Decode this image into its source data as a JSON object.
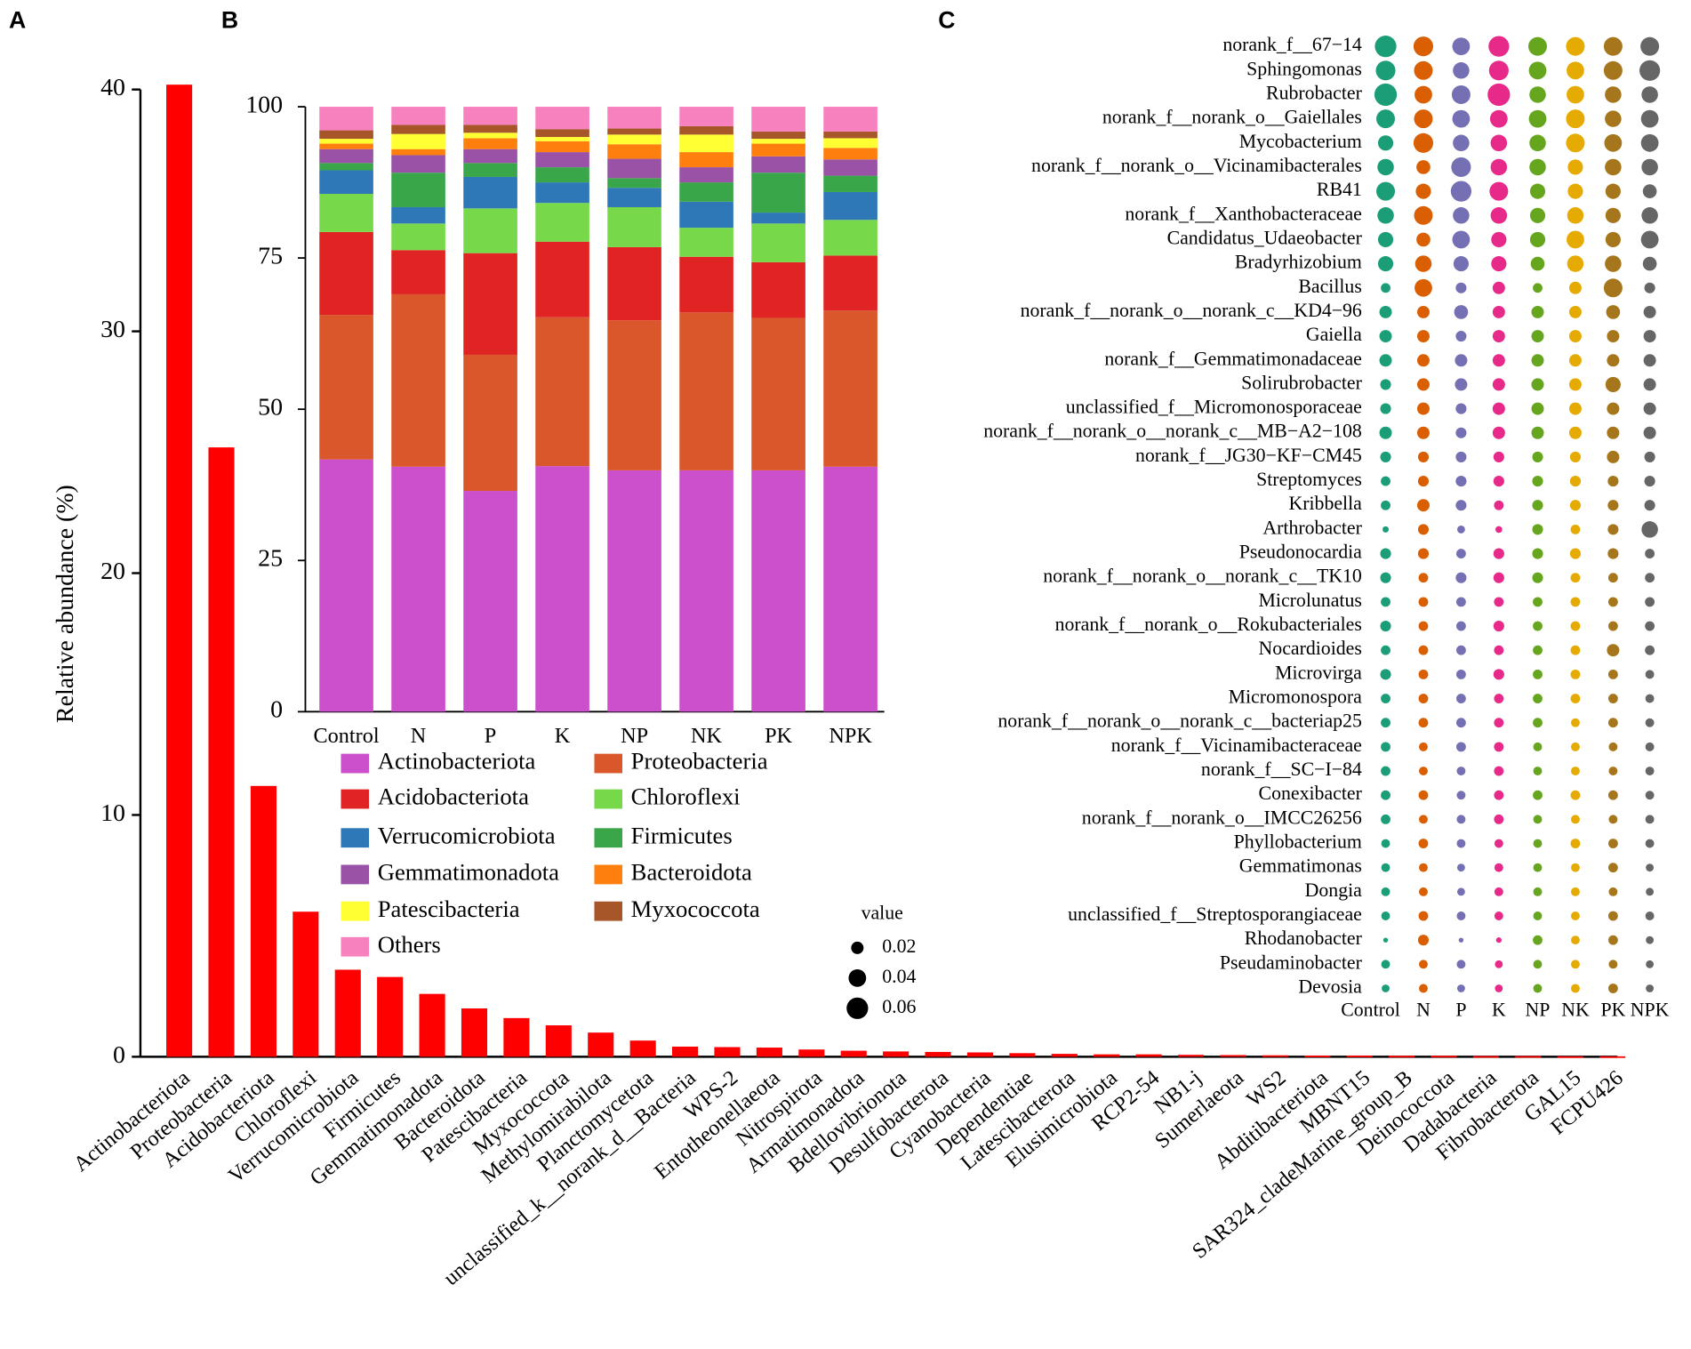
{
  "chart_data": [
    {
      "type": "bar",
      "panel": "A",
      "ylabel": "Relative abundance (%)",
      "color": "#ff0000",
      "categories": [
        "Actinobacteriota",
        "Proteobacteria",
        "Acidobacteriota",
        "Chloroflexi",
        "Verrucomicrobiota",
        "Firmicutes",
        "Gemmatimonadota",
        "Bacteroidota",
        "Patescibacteria",
        "Myxococcota",
        "Methylomirabilota",
        "Planctomycetota",
        "unclassified_k__norank_d__Bacteria",
        "WPS-2",
        "Entotheonellaeota",
        "Nitrospirota",
        "Armatimonadota",
        "Bdellovibrionota",
        "Desulfobacterota",
        "Cyanobacteria",
        "Dependentiae",
        "Latescibacterota",
        "Elusimicrobiota",
        "RCP2-54",
        "NB1-j",
        "Sumerlaeota",
        "WS2",
        "Abditibacteriota",
        "MBNT15",
        "SAR324_cladeMarine_group_B",
        "Deinococcota",
        "Dadabacteria",
        "Fibrobacterota",
        "GAL15",
        "FCPU426"
      ],
      "values": [
        40.2,
        25.2,
        11.2,
        6.0,
        3.6,
        3.3,
        2.6,
        2.0,
        1.6,
        1.3,
        1.0,
        0.67,
        0.42,
        0.4,
        0.38,
        0.3,
        0.25,
        0.22,
        0.2,
        0.18,
        0.15,
        0.12,
        0.1,
        0.1,
        0.08,
        0.07,
        0.06,
        0.05,
        0.05,
        0.04,
        0.04,
        0.03,
        0.03,
        0.02,
        0.02
      ],
      "ylim": [
        0,
        40
      ],
      "yticks": [
        0,
        10,
        20,
        30,
        40
      ]
    },
    {
      "type": "stacked_bar",
      "panel": "B",
      "categories": [
        "Control",
        "N",
        "P",
        "K",
        "NP",
        "NK",
        "PK",
        "NPK"
      ],
      "series": [
        {
          "name": "Actinobacteriota",
          "color": "#cc4fcc",
          "values": [
            41.7,
            40.5,
            36.5,
            40.6,
            39.9,
            39.9,
            39.9,
            40.5
          ]
        },
        {
          "name": "Proteobacteria",
          "color": "#d9572a",
          "values": [
            23.9,
            28.5,
            22.5,
            24.6,
            24.8,
            26.1,
            25.2,
            25.8
          ]
        },
        {
          "name": "Acidobacteriota",
          "color": "#e02424",
          "values": [
            13.7,
            7.3,
            16.8,
            12.5,
            12.1,
            9.2,
            9.2,
            9.1
          ]
        },
        {
          "name": "Chloroflexi",
          "color": "#77d94a",
          "values": [
            6.3,
            4.4,
            7.4,
            6.4,
            6.6,
            4.8,
            6.4,
            5.9
          ]
        },
        {
          "name": "Verrucomicrobiota",
          "color": "#2f78b8",
          "values": [
            3.9,
            2.7,
            5.2,
            3.4,
            3.2,
            4.3,
            1.8,
            4.6
          ]
        },
        {
          "name": "Firmicutes",
          "color": "#3aa64a",
          "values": [
            1.2,
            5.7,
            2.3,
            2.5,
            1.6,
            3.2,
            6.6,
            2.7
          ]
        },
        {
          "name": "Gemmatimonadota",
          "color": "#9a52a6",
          "values": [
            2.3,
            2.9,
            2.3,
            2.5,
            3.2,
            2.5,
            2.7,
            2.7
          ]
        },
        {
          "name": "Bacteroidota",
          "color": "#ff7f0e",
          "values": [
            0.9,
            1.0,
            1.8,
            1.8,
            2.4,
            2.5,
            2.1,
            1.9
          ]
        },
        {
          "name": "Patescibacteria",
          "color": "#ffff33",
          "values": [
            0.8,
            2.5,
            0.9,
            0.7,
            1.6,
            2.9,
            0.8,
            1.6
          ]
        },
        {
          "name": "Myxococcota",
          "color": "#a65628",
          "values": [
            1.4,
            1.5,
            1.3,
            1.3,
            1.0,
            1.4,
            1.2,
            1.1
          ]
        },
        {
          "name": "Others",
          "color": "#f781bf",
          "values": [
            3.9,
            3.0,
            3.0,
            3.7,
            3.6,
            3.2,
            4.1,
            4.1
          ]
        }
      ],
      "ylim": [
        0,
        100
      ],
      "yticks": [
        0,
        25,
        50,
        75,
        100
      ]
    },
    {
      "type": "dot",
      "panel": "C",
      "categories": [
        "Control",
        "N",
        "P",
        "K",
        "NP",
        "NK",
        "PK",
        "NPK"
      ],
      "colors": [
        "#1b9e77",
        "#d95f02",
        "#7570b3",
        "#e7298a",
        "#66a61e",
        "#e6ab02",
        "#a6761d",
        "#666666"
      ],
      "rows": [
        "norank_f__67−14",
        "Sphingomonas",
        "Rubrobacter",
        "norank_f__norank_o__Gaiellales",
        "Mycobacterium",
        "norank_f__norank_o__Vicinamibacterales",
        "RB41",
        "norank_f__Xanthobacteraceae",
        "Candidatus_Udaeobacter",
        "Bradyrhizobium",
        "Bacillus",
        "norank_f__norank_o__norank_c__KD4−96",
        "Gaiella",
        "norank_f__Gemmatimonadaceae",
        "Solirubrobacter",
        "unclassified_f__Micromonosporaceae",
        "norank_f__norank_o__norank_c__MB−A2−108",
        "norank_f__JG30−KF−CM45",
        "Streptomyces",
        "Kribbella",
        "Arthrobacter",
        "Pseudonocardia",
        "norank_f__norank_o__norank_c__TK10",
        "Microlunatus",
        "norank_f__norank_o__Rokubacteriales",
        "Nocardioides",
        "Microvirga",
        "Micromonospora",
        "norank_f__norank_o__norank_c__bacteriap25",
        "norank_f__Vicinamibacteraceae",
        "norank_f__SC−I−84",
        "Conexibacter",
        "norank_f__norank_o__IMCC26256",
        "Phyllobacterium",
        "Gemmatimonas",
        "Dongia",
        "unclassified_f__Streptosporangiaceae",
        "Rhodanobacter",
        "Pseudaminobacter",
        "Devosia"
      ],
      "values": [
        [
          0.06,
          0.05,
          0.04,
          0.055,
          0.045,
          0.045,
          0.045,
          0.045
        ],
        [
          0.05,
          0.045,
          0.035,
          0.05,
          0.04,
          0.04,
          0.045,
          0.055
        ],
        [
          0.065,
          0.04,
          0.045,
          0.065,
          0.035,
          0.04,
          0.035,
          0.035
        ],
        [
          0.045,
          0.045,
          0.04,
          0.04,
          0.04,
          0.045,
          0.035,
          0.04
        ],
        [
          0.03,
          0.05,
          0.035,
          0.035,
          0.035,
          0.045,
          0.04,
          0.04
        ],
        [
          0.035,
          0.025,
          0.05,
          0.035,
          0.035,
          0.03,
          0.035,
          0.035
        ],
        [
          0.045,
          0.03,
          0.055,
          0.045,
          0.03,
          0.03,
          0.03,
          0.025
        ],
        [
          0.035,
          0.045,
          0.035,
          0.035,
          0.03,
          0.035,
          0.03,
          0.035
        ],
        [
          0.03,
          0.025,
          0.04,
          0.03,
          0.03,
          0.04,
          0.03,
          0.04
        ],
        [
          0.03,
          0.035,
          0.03,
          0.03,
          0.025,
          0.035,
          0.035,
          0.025
        ],
        [
          0.012,
          0.04,
          0.015,
          0.02,
          0.012,
          0.02,
          0.045,
          0.015
        ],
        [
          0.02,
          0.02,
          0.025,
          0.02,
          0.02,
          0.02,
          0.025,
          0.02
        ],
        [
          0.02,
          0.02,
          0.015,
          0.02,
          0.02,
          0.02,
          0.02,
          0.02
        ],
        [
          0.02,
          0.02,
          0.02,
          0.02,
          0.02,
          0.02,
          0.02,
          0.02
        ],
        [
          0.015,
          0.02,
          0.02,
          0.02,
          0.02,
          0.02,
          0.03,
          0.02
        ],
        [
          0.015,
          0.02,
          0.015,
          0.02,
          0.02,
          0.02,
          0.02,
          0.02
        ],
        [
          0.02,
          0.02,
          0.015,
          0.02,
          0.02,
          0.02,
          0.02,
          0.02
        ],
        [
          0.015,
          0.015,
          0.015,
          0.015,
          0.015,
          0.015,
          0.02,
          0.015
        ],
        [
          0.012,
          0.015,
          0.015,
          0.015,
          0.015,
          0.015,
          0.015,
          0.015
        ],
        [
          0.012,
          0.02,
          0.015,
          0.012,
          0.015,
          0.015,
          0.015,
          0.015
        ],
        [
          0.005,
          0.015,
          0.008,
          0.006,
          0.015,
          0.012,
          0.015,
          0.035
        ],
        [
          0.015,
          0.015,
          0.012,
          0.015,
          0.015,
          0.015,
          0.015,
          0.012
        ],
        [
          0.015,
          0.012,
          0.015,
          0.015,
          0.015,
          0.012,
          0.012,
          0.012
        ],
        [
          0.012,
          0.012,
          0.012,
          0.012,
          0.012,
          0.012,
          0.012,
          0.012
        ],
        [
          0.015,
          0.012,
          0.012,
          0.015,
          0.012,
          0.012,
          0.012,
          0.012
        ],
        [
          0.012,
          0.012,
          0.012,
          0.012,
          0.012,
          0.012,
          0.02,
          0.012
        ],
        [
          0.015,
          0.012,
          0.012,
          0.015,
          0.012,
          0.012,
          0.012,
          0.01
        ],
        [
          0.012,
          0.012,
          0.012,
          0.012,
          0.012,
          0.012,
          0.012,
          0.01
        ],
        [
          0.012,
          0.012,
          0.012,
          0.012,
          0.012,
          0.01,
          0.012,
          0.01
        ],
        [
          0.012,
          0.01,
          0.012,
          0.012,
          0.01,
          0.01,
          0.01,
          0.01
        ],
        [
          0.012,
          0.01,
          0.01,
          0.012,
          0.01,
          0.01,
          0.01,
          0.01
        ],
        [
          0.012,
          0.012,
          0.01,
          0.012,
          0.012,
          0.012,
          0.012,
          0.01
        ],
        [
          0.012,
          0.01,
          0.01,
          0.012,
          0.01,
          0.01,
          0.01,
          0.01
        ],
        [
          0.01,
          0.012,
          0.01,
          0.01,
          0.01,
          0.012,
          0.012,
          0.01
        ],
        [
          0.01,
          0.01,
          0.008,
          0.01,
          0.01,
          0.01,
          0.012,
          0.008
        ],
        [
          0.01,
          0.01,
          0.008,
          0.01,
          0.01,
          0.01,
          0.01,
          0.008
        ],
        [
          0.01,
          0.012,
          0.01,
          0.01,
          0.01,
          0.01,
          0.012,
          0.01
        ],
        [
          0.003,
          0.015,
          0.003,
          0.004,
          0.012,
          0.01,
          0.012,
          0.008
        ],
        [
          0.01,
          0.01,
          0.01,
          0.008,
          0.01,
          0.01,
          0.01,
          0.008
        ],
        [
          0.008,
          0.01,
          0.008,
          0.008,
          0.01,
          0.01,
          0.012,
          0.008
        ]
      ],
      "size_legend": {
        "title": "value",
        "values": [
          0.02,
          0.04,
          0.06
        ]
      }
    }
  ]
}
